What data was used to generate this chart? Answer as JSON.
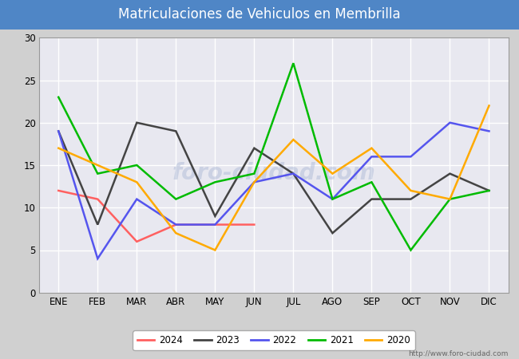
{
  "title": "Matriculaciones de Vehiculos en Membrilla",
  "title_bg_color": "#4f86c6",
  "title_text_color": "#ffffff",
  "months": [
    "ENE",
    "FEB",
    "MAR",
    "ABR",
    "MAY",
    "JUN",
    "JUL",
    "AGO",
    "SEP",
    "OCT",
    "NOV",
    "DIC"
  ],
  "ylim": [
    0,
    30
  ],
  "yticks": [
    0,
    5,
    10,
    15,
    20,
    25,
    30
  ],
  "series": {
    "2024": {
      "color": "#ff6060",
      "values": [
        12,
        11,
        6,
        8,
        8,
        8,
        null,
        null,
        null,
        null,
        null,
        null
      ]
    },
    "2023": {
      "color": "#444444",
      "values": [
        19,
        8,
        20,
        19,
        9,
        17,
        14,
        7,
        11,
        11,
        14,
        12
      ]
    },
    "2022": {
      "color": "#5555ee",
      "values": [
        19,
        4,
        11,
        8,
        8,
        13,
        14,
        11,
        16,
        16,
        20,
        19
      ]
    },
    "2021": {
      "color": "#00bb00",
      "values": [
        23,
        14,
        15,
        11,
        13,
        14,
        27,
        11,
        13,
        5,
        11,
        12
      ]
    },
    "2020": {
      "color": "#ffaa00",
      "values": [
        17,
        15,
        13,
        7,
        5,
        13,
        18,
        14,
        17,
        12,
        11,
        22
      ]
    }
  },
  "legend_order": [
    "2024",
    "2023",
    "2022",
    "2021",
    "2020"
  ],
  "url": "http://www.foro-ciudad.com",
  "fig_bg_color": "#d0d0d0",
  "plot_bg_color": "#e8e8f0",
  "grid_color": "#ffffff",
  "watermark_color": "#b0bcd8",
  "watermark_alpha": 0.5
}
